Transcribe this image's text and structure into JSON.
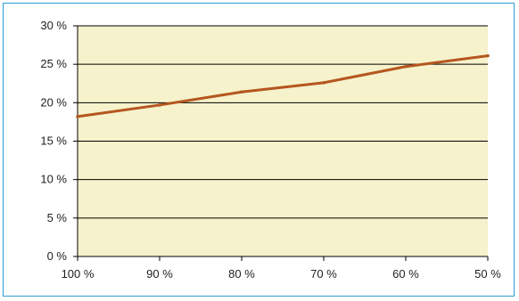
{
  "chart_data": {
    "type": "line",
    "x": [
      "100 %",
      "90 %",
      "80 %",
      "70 %",
      "60 %",
      "50 %"
    ],
    "series": [
      {
        "values": [
          18.2,
          19.7,
          21.4,
          22.6,
          24.7,
          26.1
        ]
      }
    ],
    "y_ticks": [
      "0 %",
      "5 %",
      "10 %",
      "15 %",
      "20 %",
      "25 %",
      "30 %"
    ],
    "ylim": [
      0,
      30
    ],
    "grid": true,
    "colors": {
      "plot_background": "#f5f2cc",
      "line": "#b5561f",
      "grid": "#000000",
      "frame": "#2f9bd6"
    }
  }
}
